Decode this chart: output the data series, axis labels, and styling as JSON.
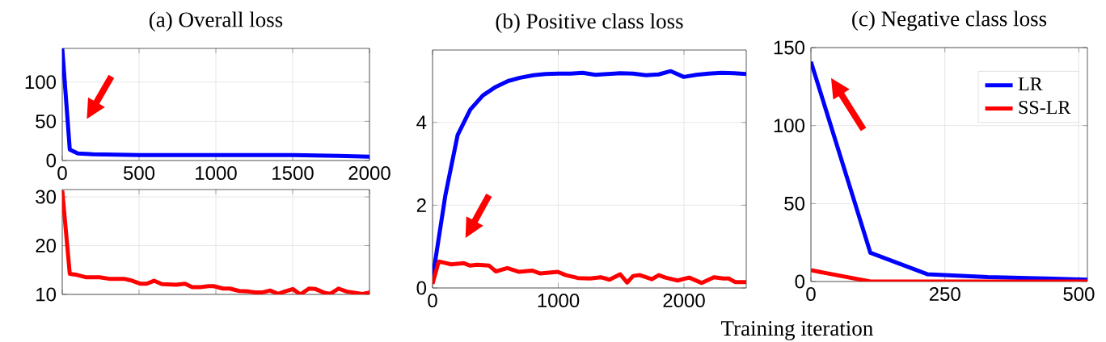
{
  "chart_data": [
    {
      "type": "line",
      "title": "(a) Overall loss",
      "xlim": [
        0,
        2000
      ],
      "xticks": [
        0,
        500,
        1000,
        1500,
        2000
      ],
      "ylim": [
        0,
        143
      ],
      "yticks": [
        0,
        50,
        100
      ],
      "grid": true,
      "series": [
        {
          "color": "#0000ff",
          "x": [
            0,
            49,
            102,
            200,
            500,
            1000,
            1500,
            1800,
            2000
          ],
          "values": [
            143,
            14,
            9,
            8,
            7,
            7,
            7,
            6,
            5
          ]
        }
      ]
    },
    {
      "type": "line",
      "xlim": [
        0,
        2000
      ],
      "xticks": [
        0,
        500,
        1000,
        1500,
        2000
      ],
      "ylim": [
        10,
        31.5
      ],
      "yticks": [
        10,
        20,
        30
      ],
      "grid": true,
      "tick_labels": "y",
      "series": [
        {
          "color": "#ff0000",
          "x": [
            0,
            49,
            96,
            157,
            244,
            305,
            401,
            445,
            506,
            550,
            597,
            649,
            742,
            799,
            846,
            899,
            951,
            986,
            1047,
            1091,
            1152,
            1213,
            1257,
            1300,
            1353,
            1405,
            1449,
            1501,
            1550,
            1606,
            1649,
            1702,
            1745,
            1798,
            1850,
            1911,
            1955,
            2000
          ],
          "values": [
            31.3,
            14.2,
            14.0,
            13.5,
            13.5,
            13.2,
            13.2,
            12.9,
            12.2,
            12.2,
            12.8,
            12.1,
            12.0,
            12.2,
            11.5,
            11.5,
            11.7,
            11.7,
            11.2,
            11.2,
            10.7,
            10.6,
            10.4,
            10.4,
            10.8,
            10.1,
            10.6,
            11.1,
            10.0,
            11.2,
            11.1,
            10.4,
            10.1,
            11.2,
            10.6,
            10.3,
            10.1,
            10.4
          ]
        }
      ]
    },
    {
      "type": "line",
      "title": "(b) Positive class loss",
      "xlim": [
        0,
        2495
      ],
      "xticks": [
        0,
        1000,
        2000
      ],
      "ylim": [
        0,
        5.75
      ],
      "yticks": [
        0,
        2,
        4
      ],
      "grid": true,
      "series": [
        {
          "color": "#0000ff",
          "x": [
            0,
            101,
            199,
            300,
            400,
            503,
            600,
            696,
            803,
            899,
            1000,
            1099,
            1193,
            1296,
            1392,
            1493,
            1595,
            1698,
            1799,
            1895,
            1998,
            2099,
            2195,
            2302,
            2398,
            2495
          ],
          "values": [
            0.23,
            2.22,
            3.69,
            4.31,
            4.65,
            4.86,
            5.0,
            5.08,
            5.14,
            5.17,
            5.18,
            5.18,
            5.2,
            5.15,
            5.17,
            5.19,
            5.18,
            5.14,
            5.16,
            5.24,
            5.1,
            5.15,
            5.18,
            5.2,
            5.19,
            5.17
          ]
        },
        {
          "color": "#ff0000",
          "x": [
            0,
            49,
            150,
            246,
            300,
            353,
            450,
            503,
            595,
            685,
            792,
            857,
            996,
            1060,
            1156,
            1253,
            1338,
            1407,
            1493,
            1548,
            1595,
            1649,
            1745,
            1799,
            1852,
            1949,
            2041,
            2141,
            2238,
            2313,
            2355,
            2409,
            2495
          ],
          "values": [
            0.1,
            0.64,
            0.57,
            0.6,
            0.54,
            0.56,
            0.54,
            0.4,
            0.48,
            0.39,
            0.42,
            0.35,
            0.39,
            0.31,
            0.24,
            0.23,
            0.26,
            0.2,
            0.33,
            0.13,
            0.29,
            0.31,
            0.21,
            0.31,
            0.25,
            0.18,
            0.25,
            0.12,
            0.26,
            0.23,
            0.23,
            0.14,
            0.14
          ]
        }
      ]
    },
    {
      "type": "line",
      "title": "(c) Negative class loss",
      "xlabel": "Training iteration",
      "xlim": [
        0,
        516
      ],
      "xticks": [
        0,
        250,
        500
      ],
      "ylim": [
        0,
        150
      ],
      "yticks": [
        0,
        50,
        100,
        150
      ],
      "grid": true,
      "legend": "top right",
      "series": [
        {
          "name": "LR",
          "color": "#0000ff",
          "x": [
            0,
            111,
            217,
            330,
            440,
            516
          ],
          "values": [
            141,
            18.4,
            4.7,
            2.8,
            1.9,
            1.2
          ]
        },
        {
          "name": "SS-LR",
          "color": "#ff0000",
          "x": [
            0,
            111,
            516
          ],
          "values": [
            7.2,
            0,
            0
          ]
        }
      ]
    }
  ]
}
